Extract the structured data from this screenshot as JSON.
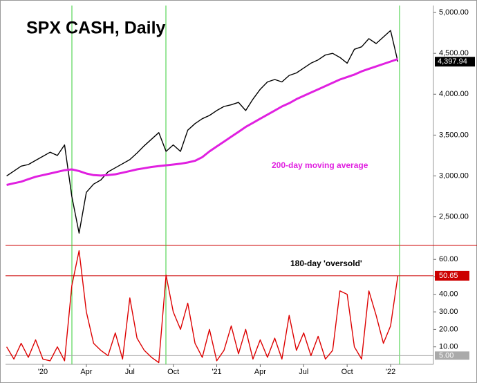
{
  "chart_data": [
    {
      "type": "line",
      "title": "SPX CASH, Daily",
      "ylim": [
        2150,
        5085
      ],
      "yticks": [
        {
          "value": 2500,
          "label": "2,500.00"
        },
        {
          "value": 3000,
          "label": "3,000.00"
        },
        {
          "value": 3500,
          "label": "3,500.00"
        },
        {
          "value": 4000,
          "label": "4,000.00"
        },
        {
          "value": 4500,
          "label": "4,500.00"
        },
        {
          "value": 5000,
          "label": "5,000.00"
        }
      ],
      "series": [
        {
          "color": "#000000",
          "last_value_label": "4,397.94",
          "values": [
            3000,
            3060,
            3120,
            3140,
            3190,
            3240,
            3290,
            3250,
            3380,
            2750,
            2300,
            2800,
            2900,
            2950,
            3050,
            3100,
            3150,
            3200,
            3280,
            3370,
            3450,
            3530,
            3300,
            3380,
            3300,
            3560,
            3640,
            3700,
            3740,
            3800,
            3850,
            3870,
            3900,
            3800,
            3940,
            4060,
            4150,
            4180,
            4150,
            4230,
            4260,
            4320,
            4380,
            4420,
            4480,
            4500,
            4450,
            4380,
            4550,
            4580,
            4680,
            4620,
            4700,
            4780,
            4397.94
          ]
        },
        {
          "name": "200-day moving average",
          "color": "#e020e0",
          "values": [
            2890,
            2910,
            2930,
            2960,
            2990,
            3010,
            3030,
            3050,
            3070,
            3080,
            3060,
            3030,
            3010,
            3005,
            3010,
            3020,
            3040,
            3060,
            3080,
            3095,
            3110,
            3120,
            3130,
            3140,
            3150,
            3165,
            3185,
            3230,
            3300,
            3360,
            3420,
            3480,
            3540,
            3600,
            3650,
            3700,
            3750,
            3800,
            3850,
            3890,
            3940,
            3980,
            4020,
            4060,
            4100,
            4140,
            4180,
            4210,
            4240,
            4280,
            4310,
            4340,
            4370,
            4400,
            4430
          ]
        }
      ]
    },
    {
      "type": "line",
      "categories": [
        null,
        null,
        null,
        null,
        null,
        "'20",
        null,
        null,
        null,
        null,
        null,
        "Apr",
        null,
        null,
        null,
        null,
        null,
        "Jul",
        null,
        null,
        null,
        null,
        null,
        "Oct",
        null,
        null,
        null,
        null,
        null,
        "'21",
        null,
        null,
        null,
        null,
        null,
        "Apr",
        null,
        null,
        null,
        null,
        null,
        "Jul",
        null,
        null,
        null,
        null,
        null,
        "Oct",
        null,
        null,
        null,
        null,
        null,
        "'22",
        null
      ],
      "ylim": [
        0,
        68
      ],
      "yticks": [
        {
          "value": 10,
          "label": "10.00"
        },
        {
          "value": 20,
          "label": "20.00"
        },
        {
          "value": 30,
          "label": "30.00"
        },
        {
          "value": 40,
          "label": "40.00"
        },
        {
          "value": 50,
          "label": "50.00"
        },
        {
          "value": 60,
          "label": "60.00"
        }
      ],
      "threshold": {
        "value": 50.65,
        "name": "180-day 'oversold'",
        "color": "#cc0000"
      },
      "lower_line": {
        "value": 5,
        "label": "5.00"
      },
      "series": [
        {
          "color": "#dd0000",
          "values": [
            10,
            3,
            12,
            4,
            14,
            3,
            2,
            10,
            2,
            45,
            65,
            30,
            12,
            8,
            5,
            18,
            3,
            38,
            15,
            8,
            4,
            1,
            51,
            30,
            20,
            35,
            12,
            4,
            20,
            2,
            8,
            22,
            6,
            20,
            3,
            14,
            4,
            15,
            3,
            28,
            8,
            18,
            5,
            16,
            3,
            8,
            42,
            40,
            10,
            3,
            42,
            28,
            12,
            22,
            50.65
          ]
        }
      ]
    }
  ]
}
